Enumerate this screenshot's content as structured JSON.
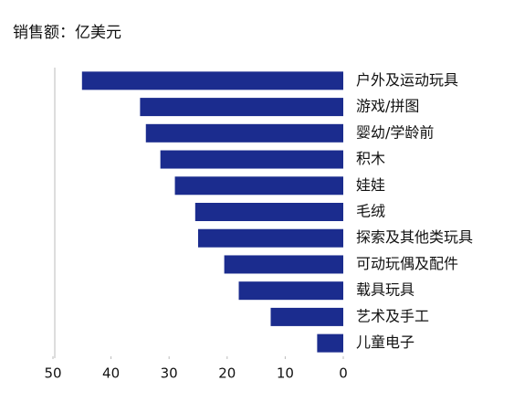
{
  "chart_data": {
    "type": "bar",
    "orientation": "horizontal",
    "title": "销售额：亿美元",
    "categories": [
      "户外及运动玩具",
      "游戏/拼图",
      "婴幼/学龄前",
      "积木",
      "娃娃",
      "毛绒",
      "探索及其他类玩具",
      "可动玩偶及配件",
      "载具玩具",
      "艺术及手工",
      "儿童电子"
    ],
    "values": [
      45,
      35,
      34,
      31.5,
      29,
      25.5,
      25,
      20.5,
      18,
      12.5,
      4.5
    ],
    "color": "#1b2c8e",
    "xlim": [
      50,
      0
    ],
    "xticks": [
      50,
      40,
      30,
      20,
      10,
      0
    ]
  }
}
